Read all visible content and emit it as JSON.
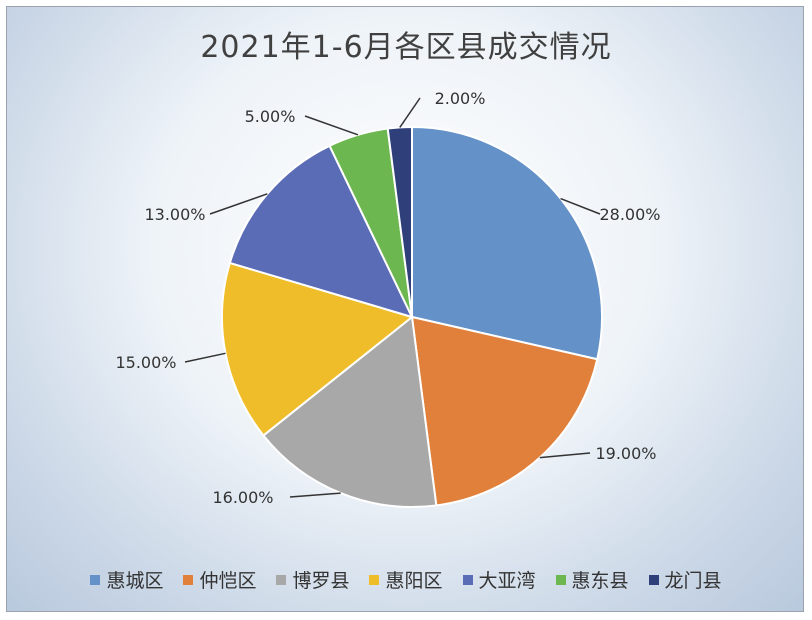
{
  "chart_data": {
    "type": "pie",
    "title": "2021年1-6月各区县成交情况",
    "categories": [
      "惠城区",
      "仲恺区",
      "博罗县",
      "惠阳区",
      "大亚湾",
      "惠东县",
      "龙门县"
    ],
    "values": [
      28,
      19,
      16,
      15,
      13,
      5,
      2
    ],
    "data_labels": [
      "28.00%",
      "19.00%",
      "16.00%",
      "15.00%",
      "13.00%",
      "5.00%",
      "2.00%"
    ],
    "colors": [
      "#6491c8",
      "#e0803b",
      "#a8a8a8",
      "#f0bd2a",
      "#5b6cb6",
      "#6cb750",
      "#2f3f7a"
    ],
    "legend_position": "bottom",
    "start_angle": "12 o'clock, clockwise"
  }
}
